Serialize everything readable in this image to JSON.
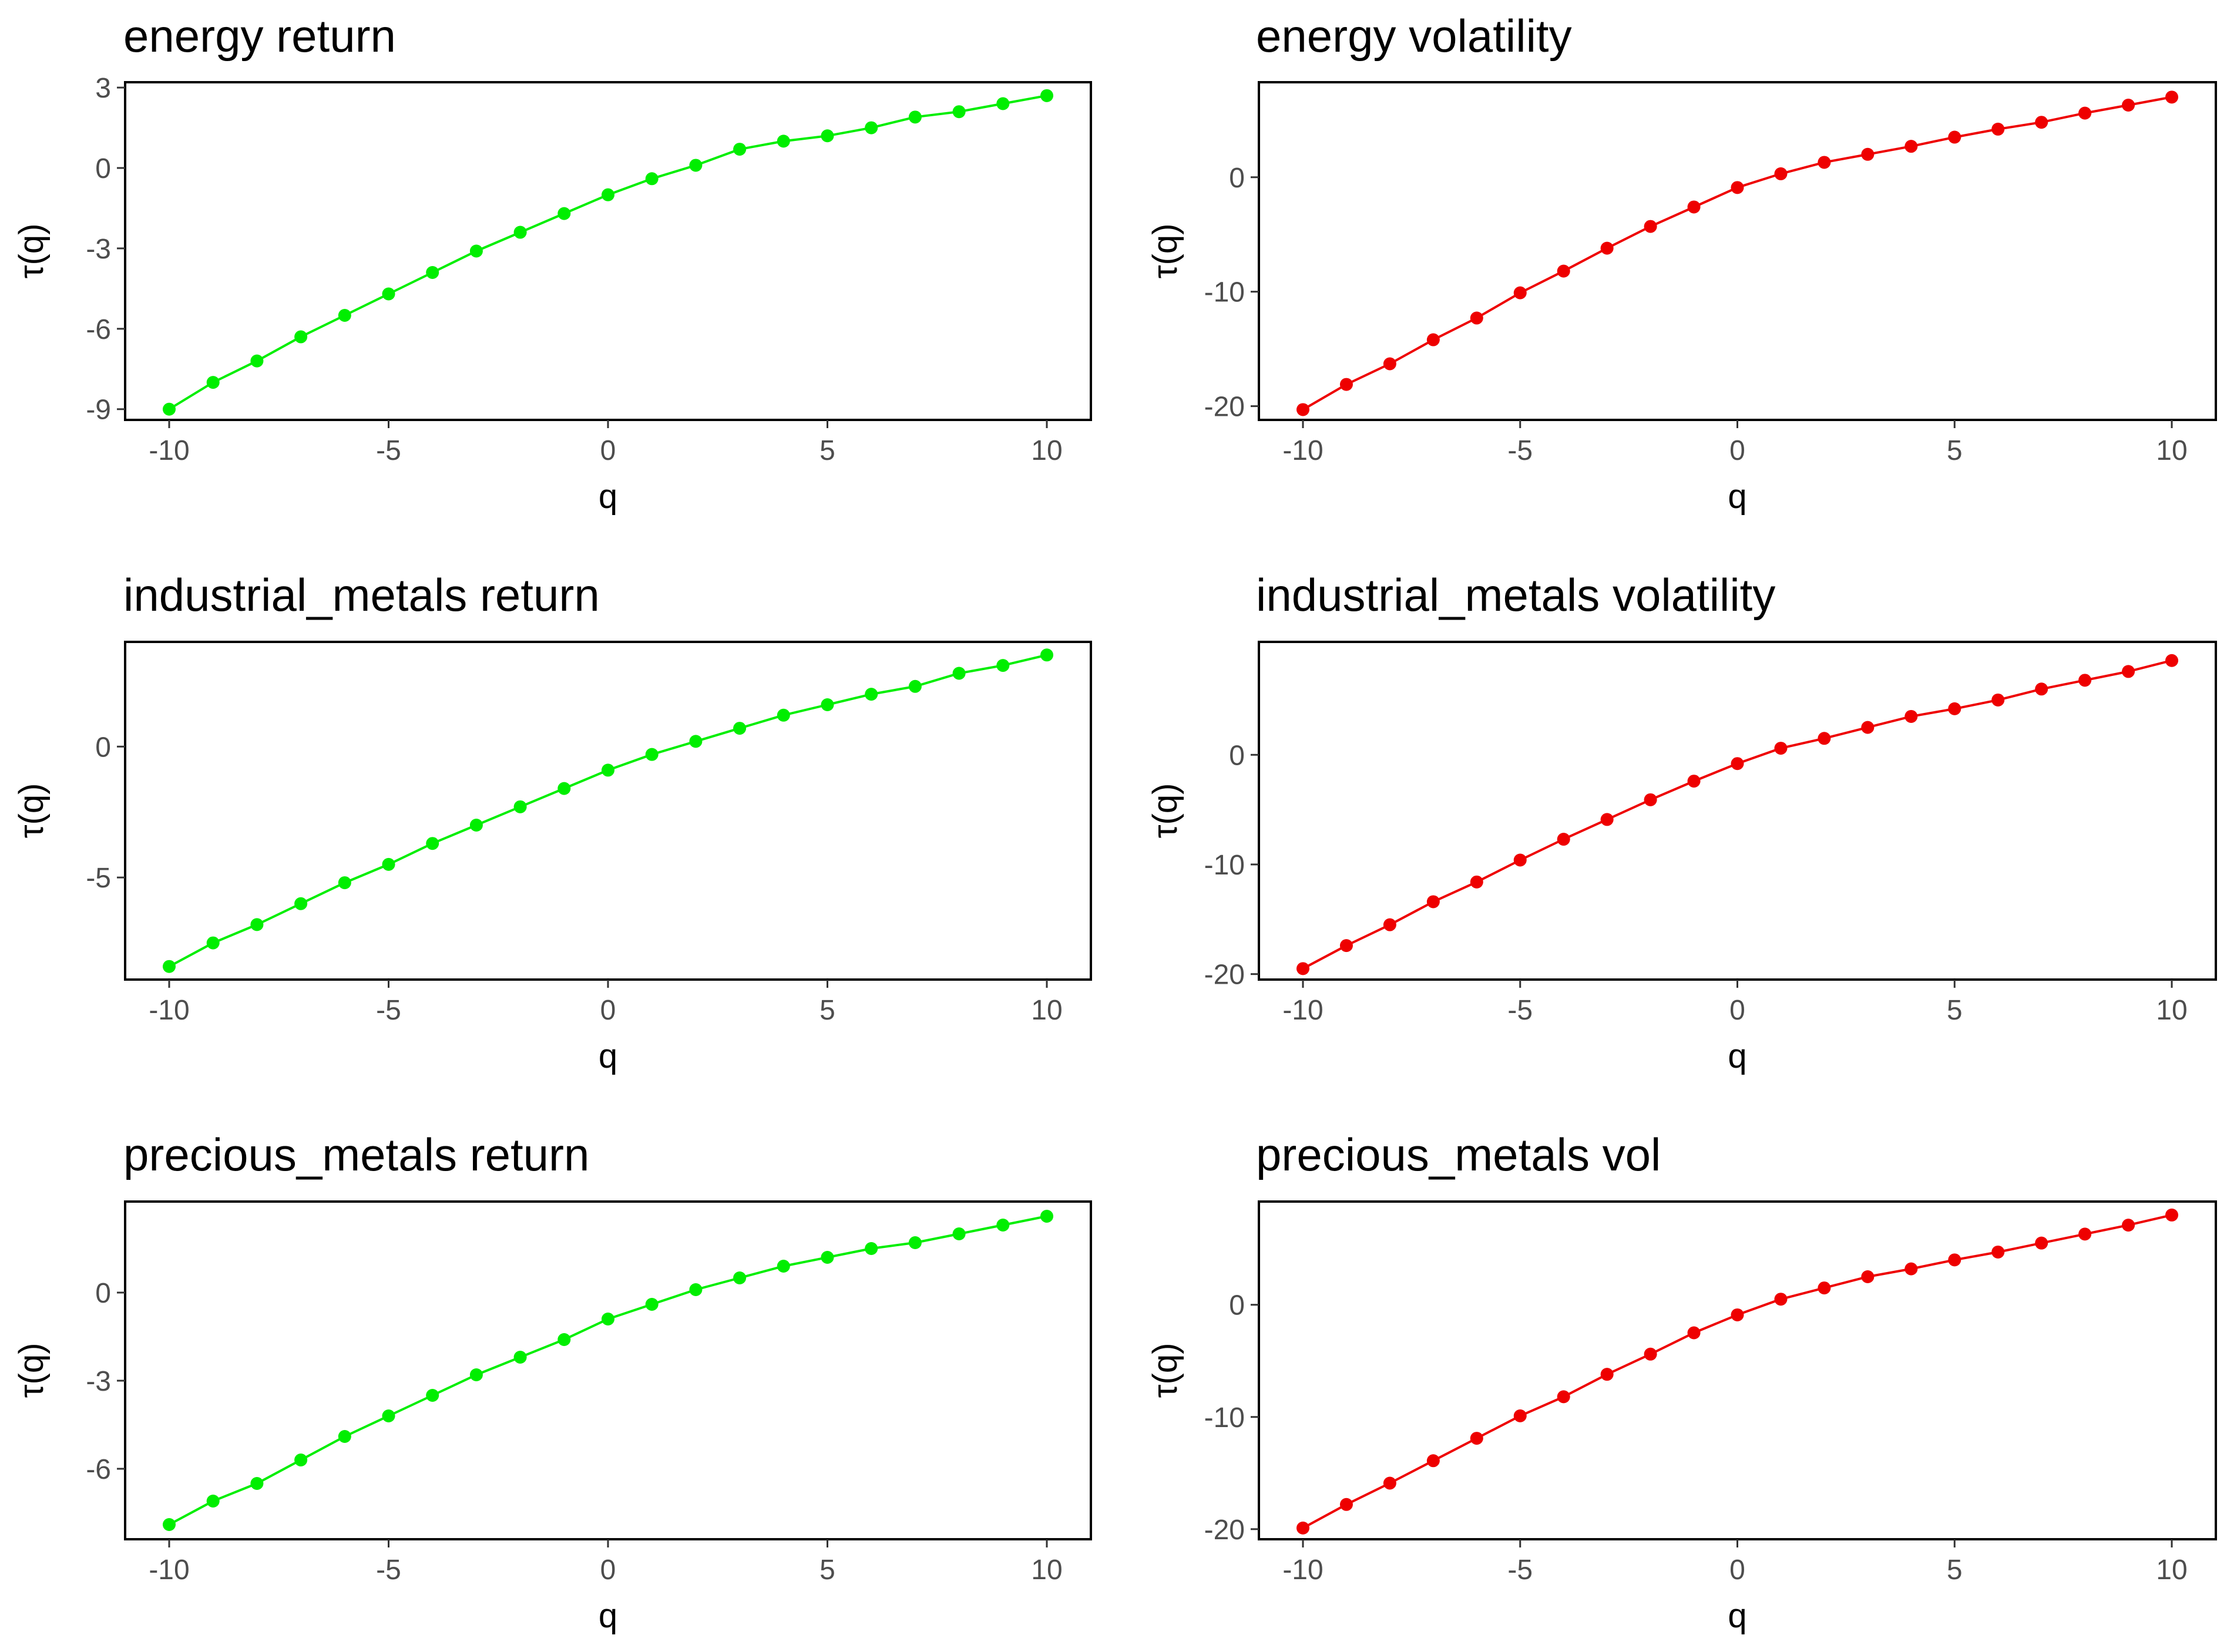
{
  "chart_data": [
    {
      "type": "line",
      "title": "energy return",
      "xlabel": "q",
      "ylabel": "τ(q)",
      "color": "#00ee00",
      "xlim": [
        -10,
        10
      ],
      "ylim": [
        -9.4,
        3.2
      ],
      "xticks": [
        -10,
        -5,
        0,
        5,
        10
      ],
      "xtick_labels": [
        "-10",
        "-5",
        "0",
        "5",
        "10"
      ],
      "yticks": [
        -9,
        -6,
        -3,
        0,
        3
      ],
      "ytick_labels": [
        "-9",
        "-6",
        "-3",
        "0",
        "3"
      ],
      "x": [
        -10,
        -9,
        -8,
        -7,
        -6,
        -5,
        -4,
        -3,
        -2,
        -1,
        0,
        1,
        2,
        3,
        4,
        5,
        6,
        7,
        8,
        9,
        10
      ],
      "y": [
        -9.0,
        -8.0,
        -7.2,
        -6.3,
        -5.5,
        -4.7,
        -3.9,
        -3.1,
        -2.4,
        -1.7,
        -1.0,
        -0.4,
        0.1,
        0.7,
        1.0,
        1.2,
        1.5,
        1.9,
        2.1,
        2.4,
        2.7
      ]
    },
    {
      "type": "line",
      "title": "energy volatility",
      "xlabel": "q",
      "ylabel": "τ(q)",
      "color": "#ee0000",
      "xlim": [
        -10,
        10
      ],
      "ylim": [
        -21.2,
        8.3
      ],
      "xticks": [
        -10,
        -5,
        0,
        5,
        10
      ],
      "xtick_labels": [
        "-10",
        "-5",
        "0",
        "5",
        "10"
      ],
      "yticks": [
        -20,
        -10,
        0
      ],
      "ytick_labels": [
        "-20",
        "-10",
        "0"
      ],
      "x": [
        -10,
        -9,
        -8,
        -7,
        -6,
        -5,
        -4,
        -3,
        -2,
        -1,
        0,
        1,
        2,
        3,
        4,
        5,
        6,
        7,
        8,
        9,
        10
      ],
      "y": [
        -20.3,
        -18.1,
        -16.3,
        -14.2,
        -12.3,
        -10.1,
        -8.2,
        -6.2,
        -4.3,
        -2.6,
        -0.9,
        0.3,
        1.3,
        2.0,
        2.7,
        3.5,
        4.2,
        4.8,
        5.6,
        6.3,
        7.0
      ]
    },
    {
      "type": "line",
      "title": "industrial_metals return",
      "xlabel": "q",
      "ylabel": "τ(q)",
      "color": "#00ee00",
      "xlim": [
        -10,
        10
      ],
      "ylim": [
        -8.9,
        4.0
      ],
      "xticks": [
        -10,
        -5,
        0,
        5,
        10
      ],
      "xtick_labels": [
        "-10",
        "-5",
        "0",
        "5",
        "10"
      ],
      "yticks": [
        -5,
        0
      ],
      "ytick_labels": [
        "-5",
        "0"
      ],
      "x": [
        -10,
        -9,
        -8,
        -7,
        -6,
        -5,
        -4,
        -3,
        -2,
        -1,
        0,
        1,
        2,
        3,
        4,
        5,
        6,
        7,
        8,
        9,
        10
      ],
      "y": [
        -8.4,
        -7.5,
        -6.8,
        -6.0,
        -5.2,
        -4.5,
        -3.7,
        -3.0,
        -2.3,
        -1.6,
        -0.9,
        -0.3,
        0.2,
        0.7,
        1.2,
        1.6,
        2.0,
        2.3,
        2.8,
        3.1,
        3.5
      ]
    },
    {
      "type": "line",
      "title": "industrial_metals volatility",
      "xlabel": "q",
      "ylabel": "τ(q)",
      "color": "#ee0000",
      "xlim": [
        -10,
        10
      ],
      "ylim": [
        -20.5,
        10.3
      ],
      "xticks": [
        -10,
        -5,
        0,
        5,
        10
      ],
      "xtick_labels": [
        "-10",
        "-5",
        "0",
        "5",
        "10"
      ],
      "yticks": [
        -20,
        -10,
        0
      ],
      "ytick_labels": [
        "-20",
        "-10",
        "0"
      ],
      "x": [
        -10,
        -9,
        -8,
        -7,
        -6,
        -5,
        -4,
        -3,
        -2,
        -1,
        0,
        1,
        2,
        3,
        4,
        5,
        6,
        7,
        8,
        9,
        10
      ],
      "y": [
        -19.5,
        -17.4,
        -15.5,
        -13.4,
        -11.6,
        -9.6,
        -7.7,
        -5.9,
        -4.1,
        -2.4,
        -0.8,
        0.6,
        1.5,
        2.5,
        3.5,
        4.2,
        5.0,
        6.0,
        6.8,
        7.6,
        8.6
      ]
    },
    {
      "type": "line",
      "title": "precious_metals return",
      "xlabel": "q",
      "ylabel": "τ(q)",
      "color": "#00ee00",
      "xlim": [
        -10,
        10
      ],
      "ylim": [
        -8.4,
        3.1
      ],
      "xticks": [
        -10,
        -5,
        0,
        5,
        10
      ],
      "xtick_labels": [
        "-10",
        "-5",
        "0",
        "5",
        "10"
      ],
      "yticks": [
        -6,
        -3,
        0
      ],
      "ytick_labels": [
        "-6",
        "-3",
        "0"
      ],
      "x": [
        -10,
        -9,
        -8,
        -7,
        -6,
        -5,
        -4,
        -3,
        -2,
        -1,
        0,
        1,
        2,
        3,
        4,
        5,
        6,
        7,
        8,
        9,
        10
      ],
      "y": [
        -7.9,
        -7.1,
        -6.5,
        -5.7,
        -4.9,
        -4.2,
        -3.5,
        -2.8,
        -2.2,
        -1.6,
        -0.9,
        -0.4,
        0.1,
        0.5,
        0.9,
        1.2,
        1.5,
        1.7,
        2.0,
        2.3,
        2.6
      ]
    },
    {
      "type": "line",
      "title": "precious_metals vol",
      "xlabel": "q",
      "ylabel": "τ(q)",
      "color": "#ee0000",
      "xlim": [
        -10,
        10
      ],
      "ylim": [
        -20.9,
        9.2
      ],
      "xticks": [
        -10,
        -5,
        0,
        5,
        10
      ],
      "xtick_labels": [
        "-10",
        "-5",
        "0",
        "5",
        "10"
      ],
      "yticks": [
        -20,
        -10,
        0
      ],
      "ytick_labels": [
        "-20",
        "-10",
        "0"
      ],
      "x": [
        -10,
        -9,
        -8,
        -7,
        -6,
        -5,
        -4,
        -3,
        -2,
        -1,
        0,
        1,
        2,
        3,
        4,
        5,
        6,
        7,
        8,
        9,
        10
      ],
      "y": [
        -19.9,
        -17.8,
        -15.9,
        -13.9,
        -11.9,
        -9.9,
        -8.2,
        -6.2,
        -4.4,
        -2.5,
        -0.9,
        0.5,
        1.5,
        2.5,
        3.2,
        4.0,
        4.7,
        5.5,
        6.3,
        7.1,
        8.0
      ]
    }
  ]
}
